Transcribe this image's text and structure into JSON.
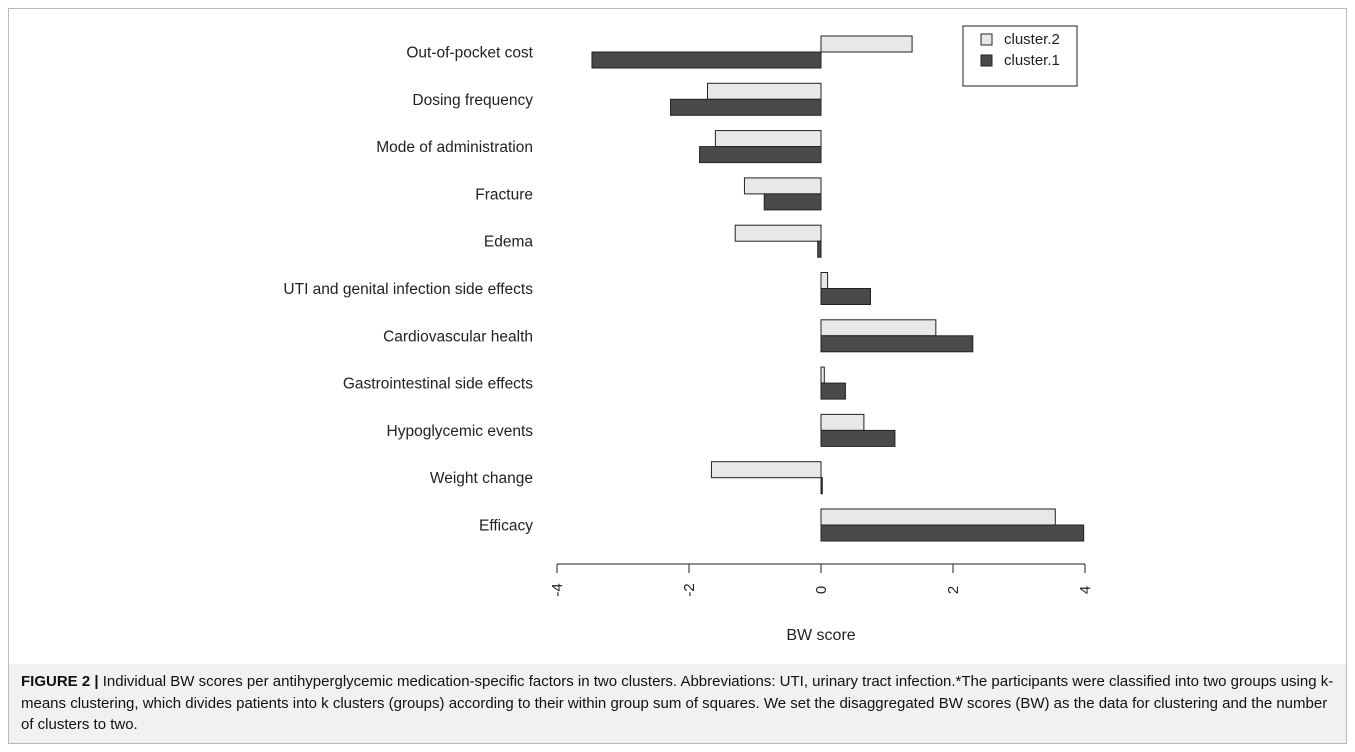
{
  "chart_data": {
    "type": "bar",
    "orientation": "horizontal",
    "categories": [
      "Out-of-pocket cost",
      "Dosing frequency",
      "Mode of administration",
      "Fracture",
      "Edema",
      "UTI and genital infection side effects",
      "Cardiovascular health",
      "Gastrointestinal side effects",
      "Hypoglycemic events",
      "Weight change",
      "Efficacy"
    ],
    "series": [
      {
        "name": "cluster.2",
        "color": "#e8e8e8",
        "values": [
          1.38,
          -1.72,
          -1.6,
          -1.16,
          -1.3,
          0.1,
          1.74,
          0.05,
          0.65,
          -1.66,
          3.55
        ]
      },
      {
        "name": "cluster.1",
        "color": "#4a4a4a",
        "values": [
          -3.47,
          -2.28,
          -1.84,
          -0.86,
          -0.05,
          0.75,
          2.3,
          0.37,
          1.12,
          0.02,
          3.98
        ]
      }
    ],
    "xlabel": "BW score",
    "xlim": [
      -4,
      4
    ],
    "xticks": [
      "-4",
      "-2",
      "0",
      "2",
      "4"
    ],
    "legend": {
      "position": "top-right",
      "order": [
        "cluster.2",
        "cluster.1"
      ]
    },
    "grid": false
  },
  "caption": {
    "label": "FIGURE 2 |",
    "text": " Individual BW scores per antihyperglycemic medication-specific factors in two clusters. Abbreviations: UTI, urinary tract infection.*The participants were classified into two groups using k-means clustering, which divides patients into k clusters (groups) according to their within group sum of squares. We set the disaggregated BW scores (BW) as the data for clustering and the number of clusters to two."
  }
}
